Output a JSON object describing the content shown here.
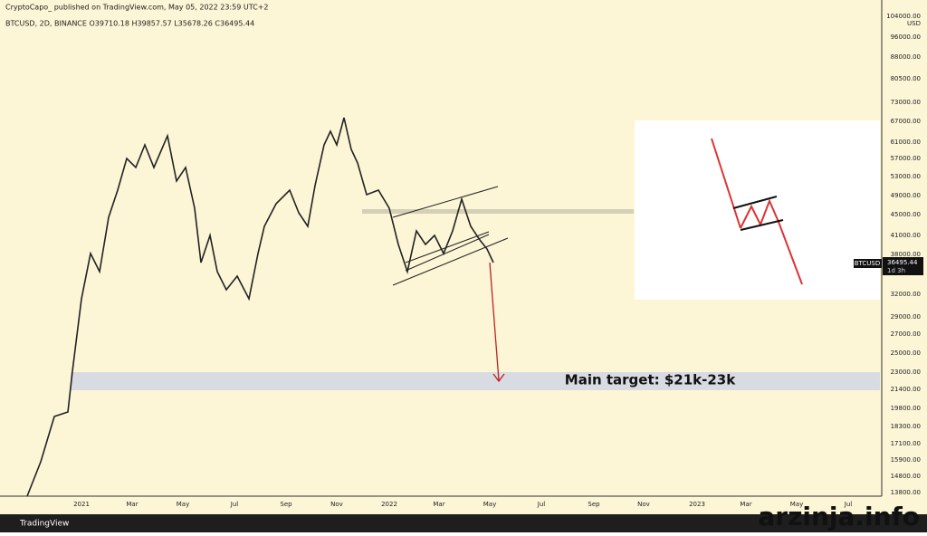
{
  "header": {
    "publisher": "CryptoCapo_ published on TradingView.com, May 05, 2022 23:59 UTC+2",
    "symbol_line": "BTCUSD, 2D, BINANCE  O39710.18  H39857.57  L35678.26  C36495.44"
  },
  "price_axis": {
    "unit": "USD",
    "labels": [
      "104000.00",
      "96000.00",
      "88000.00",
      "80500.00",
      "73000.00",
      "67000.00",
      "61000.00",
      "57000.00",
      "53000.00",
      "49000.00",
      "45000.00",
      "41000.00",
      "38000.00",
      "32000.00",
      "29000.00",
      "27000.00",
      "25000.00",
      "23000.00",
      "21400.00",
      "19800.00",
      "18300.00",
      "17100.00",
      "15900.00",
      "14800.00",
      "13800.00"
    ]
  },
  "price_tag": {
    "symbol": "BTCUSD",
    "price": "36495.44",
    "countdown": "1d 3h"
  },
  "time_axis": {
    "labels": [
      "2021",
      "Mar",
      "May",
      "Jul",
      "Sep",
      "Nov",
      "2022",
      "Mar",
      "May",
      "Jul",
      "Sep",
      "Nov",
      "2023",
      "Mar",
      "May",
      "Jul"
    ]
  },
  "annotation": "Main target: $21k-23k",
  "footer": {
    "brand": "TradingView"
  },
  "watermark": "arzinja.info"
}
